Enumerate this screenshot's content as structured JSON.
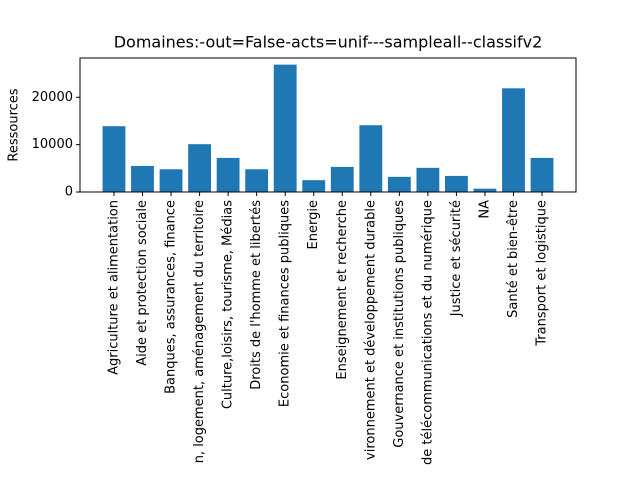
{
  "chart_data": {
    "type": "bar",
    "title": "Domaines:-out=False-acts=unif---sampleall--classifv2",
    "y_label": "Ressources",
    "categories": [
      "Agriculture et alimentation",
      "Aide et protection sociale",
      "Banques, assurances, finance",
      "n, logement, aménagement du territoire",
      "Culture,loisirs, tourisme, Médias",
      "Droits de l'homme et libertés",
      "Economie et finances publiques",
      "Energie",
      "Enseignement et recherche",
      "vironnement et développement durable",
      "Gouvernance et institutions publiques",
      "de télécommunications et du numérique",
      "Justice et sécurité",
      "NA",
      "Santé et bien-être",
      "Transport et logistique"
    ],
    "values": [
      13900,
      5500,
      4800,
      10100,
      7200,
      4800,
      26900,
      2500,
      5300,
      14100,
      3200,
      5100,
      3400,
      700,
      21900,
      7200
    ],
    "color": "#1f77b4",
    "ylim": [
      0,
      28300
    ],
    "yticks": [
      0,
      10000,
      20000
    ],
    "grid": false
  }
}
